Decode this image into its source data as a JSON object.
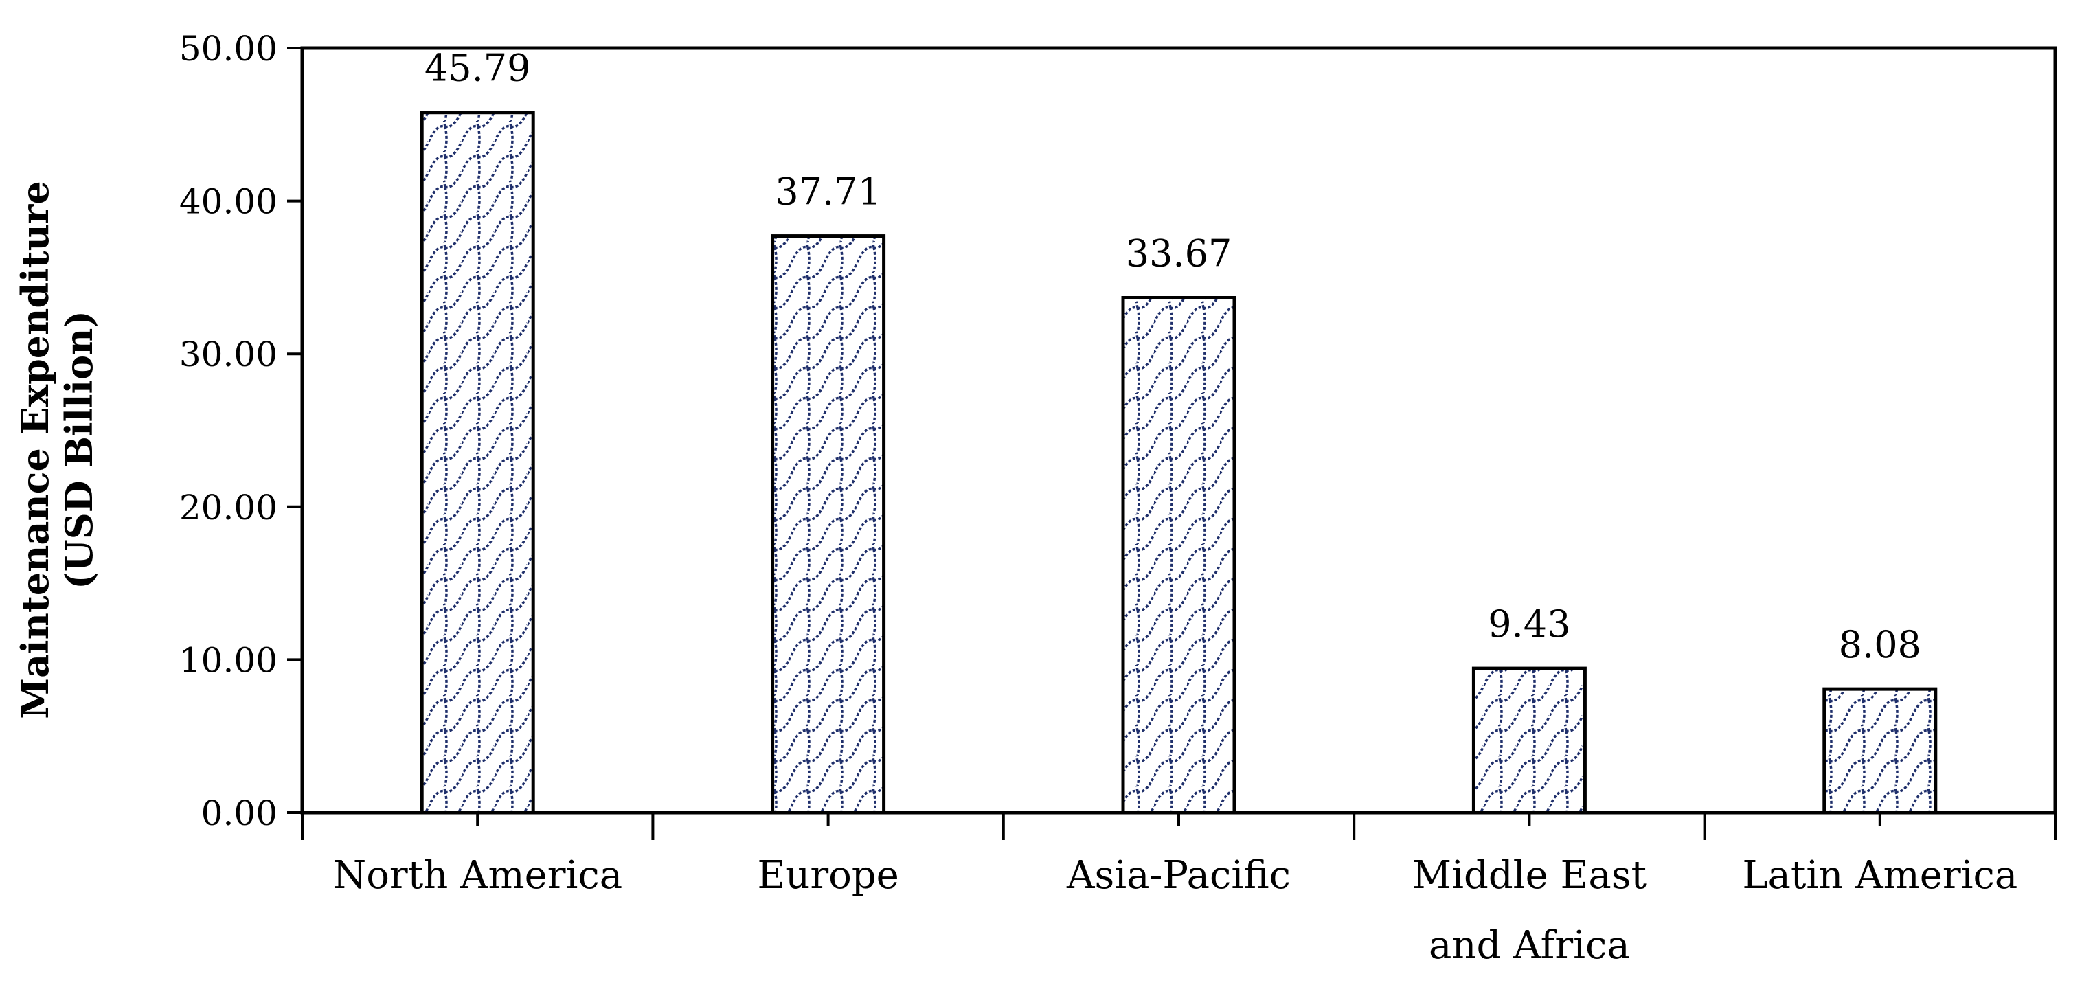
{
  "chart_data": {
    "type": "bar",
    "categories": [
      [
        "North America"
      ],
      [
        "Europe"
      ],
      [
        "Asia-Pacific"
      ],
      [
        "Middle East",
        "and Africa"
      ],
      [
        "Latin America"
      ]
    ],
    "values": [
      45.79,
      37.71,
      33.67,
      9.43,
      8.08
    ],
    "data_labels": [
      "45.79",
      "37.71",
      "33.67",
      "9.43",
      "8.08"
    ],
    "ylabel": [
      "Maintenance Expenditure",
      "(USD  Billion)"
    ],
    "ylim": [
      0,
      50
    ],
    "yticks": [
      0,
      10,
      20,
      30,
      40,
      50
    ],
    "ytick_labels": [
      "0.00",
      "10.00",
      "20.00",
      "30.00",
      "40.00",
      "50.00"
    ],
    "grid": false,
    "legend": "none",
    "bar_pattern": "fish-scale hatch",
    "colors": {
      "pattern": "#1f2f6b",
      "outline": "#000000",
      "background": "#ffffff"
    }
  }
}
